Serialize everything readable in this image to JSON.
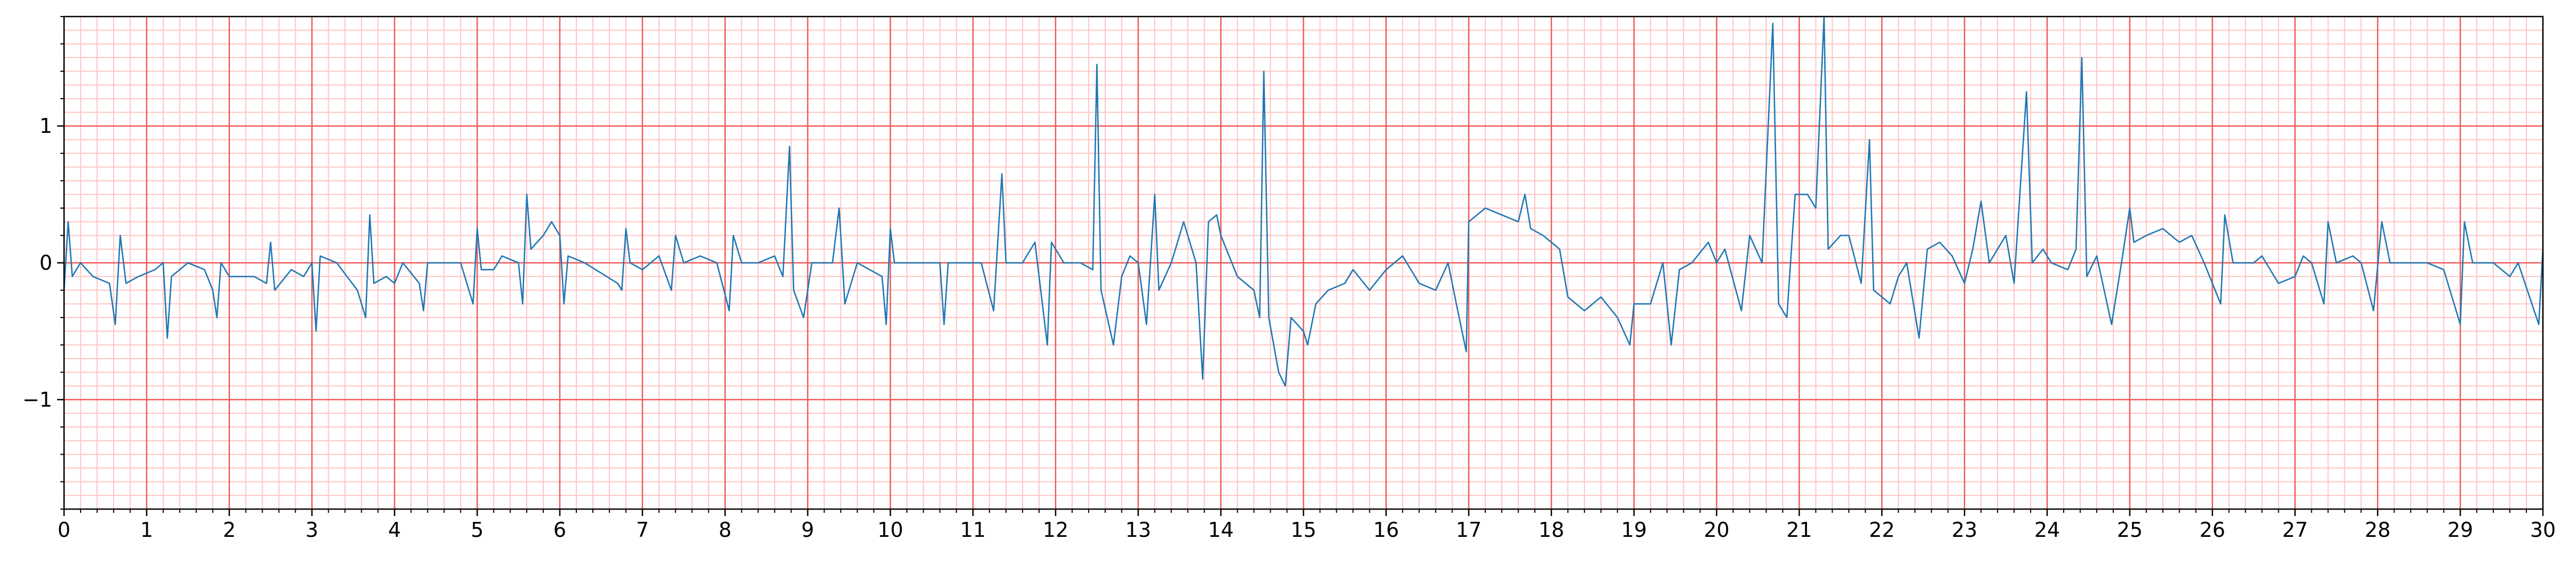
{
  "chart_data": {
    "type": "line",
    "color": "#1f77b4",
    "grid": true,
    "minor_grid": true,
    "xlim": [
      0,
      30
    ],
    "ylim": [
      -1.8,
      1.8
    ],
    "xticks": [
      0,
      1,
      2,
      3,
      4,
      5,
      6,
      7,
      8,
      9,
      10,
      11,
      12,
      13,
      14,
      15,
      16,
      17,
      18,
      19,
      20,
      21,
      22,
      23,
      24,
      25,
      26,
      27,
      28,
      29,
      30
    ],
    "yticks": [
      {
        "value": -1,
        "label": "−1"
      },
      0,
      1
    ],
    "x": [
      0,
      0.05,
      0.1,
      0.2,
      0.35,
      0.55,
      0.62,
      0.68,
      0.75,
      0.9,
      1.1,
      1.2,
      1.25,
      1.3,
      1.5,
      1.7,
      1.8,
      1.85,
      1.9,
      2.0,
      2.3,
      2.45,
      2.5,
      2.55,
      2.75,
      2.9,
      3.0,
      3.05,
      3.1,
      3.3,
      3.55,
      3.65,
      3.7,
      3.75,
      3.9,
      4.0,
      4.1,
      4.3,
      4.35,
      4.4,
      4.6,
      4.8,
      4.95,
      5.0,
      5.05,
      5.2,
      5.3,
      5.5,
      5.55,
      5.6,
      5.65,
      5.8,
      5.9,
      6.0,
      6.05,
      6.1,
      6.3,
      6.7,
      6.75,
      6.8,
      6.85,
      7.0,
      7.2,
      7.35,
      7.4,
      7.5,
      7.7,
      7.9,
      8.05,
      8.1,
      8.2,
      8.4,
      8.6,
      8.7,
      8.78,
      8.83,
      8.95,
      9.05,
      9.3,
      9.38,
      9.45,
      9.6,
      9.9,
      9.95,
      10.0,
      10.05,
      10.3,
      10.6,
      10.65,
      10.7,
      10.9,
      11.1,
      11.25,
      11.35,
      11.4,
      11.6,
      11.75,
      11.9,
      11.95,
      12.1,
      12.3,
      12.45,
      12.5,
      12.55,
      12.7,
      12.8,
      12.9,
      13.0,
      13.1,
      13.2,
      13.25,
      13.4,
      13.55,
      13.7,
      13.78,
      13.85,
      13.95,
      14.0,
      14.2,
      14.4,
      14.47,
      14.52,
      14.58,
      14.7,
      14.78,
      14.85,
      15.0,
      15.05,
      15.15,
      15.3,
      15.5,
      15.6,
      15.8,
      16.0,
      16.2,
      16.4,
      16.6,
      16.75,
      16.85,
      16.97,
      17.0,
      17.2,
      17.4,
      17.6,
      17.68,
      17.75,
      17.9,
      18.1,
      18.2,
      18.4,
      18.6,
      18.8,
      18.95,
      19.0,
      19.2,
      19.35,
      19.45,
      19.55,
      19.7,
      19.9,
      20.0,
      20.1,
      20.3,
      20.4,
      20.55,
      20.68,
      20.75,
      20.85,
      20.95,
      21.1,
      21.2,
      21.3,
      21.35,
      21.5,
      21.6,
      21.75,
      21.85,
      21.9,
      22.1,
      22.2,
      22.3,
      22.45,
      22.55,
      22.7,
      22.85,
      23.0,
      23.1,
      23.2,
      23.3,
      23.5,
      23.6,
      23.75,
      23.82,
      23.95,
      24.05,
      24.25,
      24.35,
      24.42,
      24.48,
      24.6,
      24.78,
      24.9,
      25.0,
      25.05,
      25.2,
      25.4,
      25.6,
      25.75,
      25.9,
      26.1,
      26.15,
      26.25,
      26.5,
      26.6,
      26.8,
      27.0,
      27.1,
      27.2,
      27.35,
      27.4,
      27.5,
      27.7,
      27.8,
      27.95,
      28.05,
      28.15,
      28.4,
      28.6,
      28.8,
      29.0,
      29.05,
      29.15,
      29.4,
      29.6,
      29.7,
      29.95,
      30.0
    ],
    "values": [
      -0.2,
      0.3,
      -0.1,
      0.0,
      -0.1,
      -0.15,
      -0.45,
      0.2,
      -0.15,
      -0.1,
      -0.05,
      0.0,
      -0.55,
      -0.1,
      0.0,
      -0.05,
      -0.2,
      -0.4,
      0.0,
      -0.1,
      -0.1,
      -0.15,
      0.15,
      -0.2,
      -0.05,
      -0.1,
      0.0,
      -0.5,
      0.05,
      0.0,
      -0.2,
      -0.4,
      0.35,
      -0.15,
      -0.1,
      -0.15,
      0.0,
      -0.15,
      -0.35,
      0.0,
      0.0,
      0.0,
      -0.3,
      0.25,
      -0.05,
      -0.05,
      0.05,
      0.0,
      -0.3,
      0.5,
      0.1,
      0.2,
      0.3,
      0.2,
      -0.3,
      0.05,
      0.0,
      -0.15,
      -0.2,
      0.25,
      0.0,
      -0.05,
      0.05,
      -0.2,
      0.2,
      0.0,
      0.05,
      0.0,
      -0.35,
      0.2,
      0.0,
      0.0,
      0.05,
      -0.1,
      0.85,
      -0.2,
      -0.4,
      0.0,
      0.0,
      0.4,
      -0.3,
      0.0,
      -0.1,
      -0.45,
      0.25,
      0.0,
      0.0,
      0.0,
      -0.45,
      0.0,
      0.0,
      0.0,
      -0.35,
      0.65,
      0.0,
      0.0,
      0.15,
      -0.6,
      0.15,
      0.0,
      0.0,
      -0.05,
      1.45,
      -0.2,
      -0.6,
      -0.1,
      0.05,
      0.0,
      -0.45,
      0.5,
      -0.2,
      0.0,
      0.3,
      0.0,
      -0.85,
      0.3,
      0.35,
      0.2,
      -0.1,
      -0.2,
      -0.4,
      1.4,
      -0.4,
      -0.8,
      -0.9,
      -0.4,
      -0.5,
      -0.6,
      -0.3,
      -0.2,
      -0.15,
      -0.05,
      -0.2,
      -0.05,
      0.05,
      -0.15,
      -0.2,
      0.0,
      -0.3,
      -0.65,
      0.3,
      0.4,
      0.35,
      0.3,
      0.5,
      0.25,
      0.2,
      0.1,
      -0.25,
      -0.35,
      -0.25,
      -0.4,
      -0.6,
      -0.3,
      -0.3,
      0.0,
      -0.6,
      -0.05,
      0.0,
      0.15,
      0.0,
      0.1,
      -0.35,
      0.2,
      0.0,
      1.75,
      -0.3,
      -0.4,
      0.5,
      0.5,
      0.4,
      1.8,
      0.1,
      0.2,
      0.2,
      -0.15,
      0.9,
      -0.2,
      -0.3,
      -0.1,
      0.0,
      -0.55,
      0.1,
      0.15,
      0.05,
      -0.15,
      0.1,
      0.45,
      0.0,
      0.2,
      -0.15,
      1.25,
      0.0,
      0.1,
      0.0,
      -0.05,
      0.1,
      1.5,
      -0.1,
      0.05,
      -0.45,
      0.0,
      0.4,
      0.15,
      0.2,
      0.25,
      0.15,
      0.2,
      0.0,
      -0.3,
      0.35,
      0.0,
      0.0,
      0.05,
      -0.15,
      -0.1,
      0.05,
      0.0,
      -0.3,
      0.3,
      0.0,
      0.05,
      0.0,
      -0.35,
      0.3,
      0.0,
      0.0,
      0.0,
      -0.05,
      -0.45,
      0.3,
      0.0,
      0.0,
      -0.1,
      0.0,
      -0.45,
      0.1
    ]
  }
}
